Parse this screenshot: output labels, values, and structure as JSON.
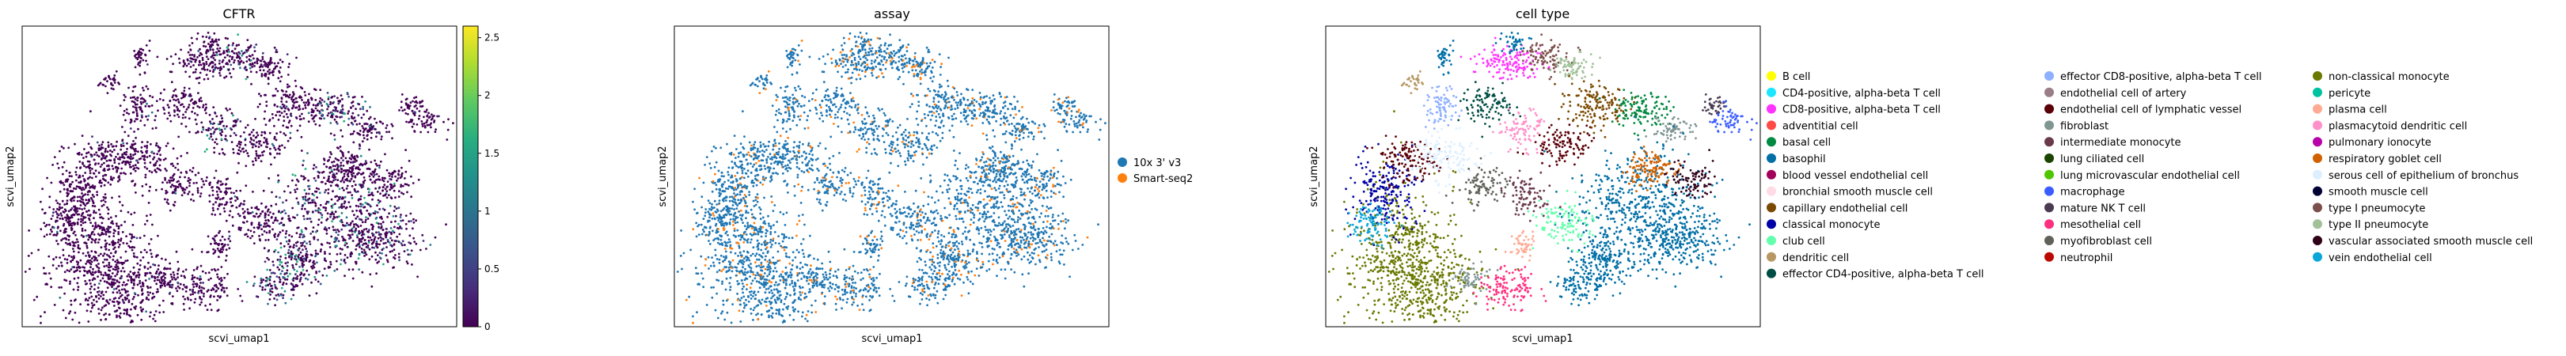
{
  "chart_data": [
    {
      "type": "scatter",
      "title": "CFTR",
      "xlabel": "scvi_umap1",
      "ylabel": "scvi_umap2",
      "colorbar": {
        "colormap": "viridis",
        "range": [
          0,
          2.6
        ],
        "tick_values": [
          0,
          0.5,
          1,
          1.5,
          2,
          2.5
        ],
        "tick_labels": [
          "0",
          "0.5",
          "1",
          "1.5",
          "2",
          "2.5"
        ]
      }
    },
    {
      "type": "scatter",
      "title": "assay",
      "xlabel": "scvi_umap1",
      "ylabel": "scvi_umap2",
      "legend_position": "right",
      "legend": [
        {
          "label": "10x 3' v3",
          "color": "#1f77b4"
        },
        {
          "label": "Smart-seq2",
          "color": "#ff7f0e"
        }
      ]
    },
    {
      "type": "scatter",
      "title": "cell type",
      "xlabel": "scvi_umap1",
      "ylabel": "scvi_umap2",
      "legend_position": "right",
      "legend_columns": [
        [
          {
            "label": "B cell",
            "color": "#ffff00"
          },
          {
            "label": "CD4-positive, alpha-beta T cell",
            "color": "#1ce6ff"
          },
          {
            "label": "CD8-positive, alpha-beta T cell",
            "color": "#ff34ff"
          },
          {
            "label": "adventitial cell",
            "color": "#ff4a46"
          },
          {
            "label": "basal cell",
            "color": "#008941"
          },
          {
            "label": "basophil",
            "color": "#006fa6"
          },
          {
            "label": "blood vessel endothelial cell",
            "color": "#a30059"
          },
          {
            "label": "bronchial smooth muscle cell",
            "color": "#ffdbe5"
          },
          {
            "label": "capillary endothelial cell",
            "color": "#7a4900"
          },
          {
            "label": "classical monocyte",
            "color": "#0000a6"
          },
          {
            "label": "club cell",
            "color": "#63ffac"
          },
          {
            "label": "dendritic cell",
            "color": "#b79762"
          },
          {
            "label": "effector CD4-positive, alpha-beta T cell",
            "color": "#004d43"
          }
        ],
        [
          {
            "label": "effector CD8-positive, alpha-beta T cell",
            "color": "#8fb0ff"
          },
          {
            "label": "endothelial cell of artery",
            "color": "#997d87"
          },
          {
            "label": "endothelial cell of lymphatic vessel",
            "color": "#5a0007"
          },
          {
            "label": "fibroblast",
            "color": "#809693"
          },
          {
            "label": "intermediate monocyte",
            "color": "#6a3a4c"
          },
          {
            "label": "lung ciliated cell",
            "color": "#1b4400"
          },
          {
            "label": "lung microvascular endothelial cell",
            "color": "#4fc601"
          },
          {
            "label": "macrophage",
            "color": "#3b5dff"
          },
          {
            "label": "mature NK T cell",
            "color": "#4a3b53"
          },
          {
            "label": "mesothelial cell",
            "color": "#ff2f80"
          },
          {
            "label": "myofibroblast cell",
            "color": "#61615a"
          },
          {
            "label": "neutrophil",
            "color": "#ba0900"
          }
        ],
        [
          {
            "label": "non-classical monocyte",
            "color": "#6b7900"
          },
          {
            "label": "pericyte",
            "color": "#00c2a0"
          },
          {
            "label": "plasma cell",
            "color": "#ffaa92"
          },
          {
            "label": "plasmacytoid dendritic cell",
            "color": "#ff90c9"
          },
          {
            "label": "pulmonary ionocyte",
            "color": "#b903aa"
          },
          {
            "label": "respiratory goblet cell",
            "color": "#d16100"
          },
          {
            "label": "serous cell of epithelium of bronchus",
            "color": "#ddefff"
          },
          {
            "label": "smooth muscle cell",
            "color": "#000035"
          },
          {
            "label": "type I pneumocyte",
            "color": "#7b4f4b"
          },
          {
            "label": "type II pneumocyte",
            "color": "#a1c299"
          },
          {
            "label": "vascular associated smooth muscle cell",
            "color": "#300018"
          },
          {
            "label": "vein endothelial cell",
            "color": "#0aa6d8"
          }
        ]
      ]
    }
  ]
}
